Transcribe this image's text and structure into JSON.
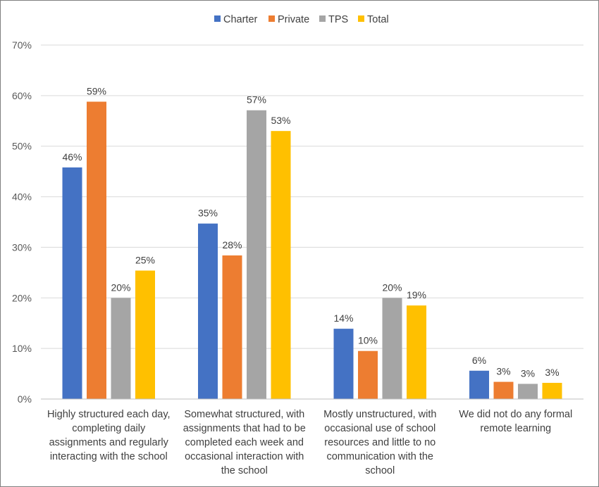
{
  "chart_data": {
    "type": "bar",
    "title": "",
    "xlabel": "",
    "ylabel": "",
    "ylim": [
      0,
      70
    ],
    "yticks": [
      0,
      10,
      20,
      30,
      40,
      50,
      60,
      70
    ],
    "ytick_labels": [
      "0%",
      "10%",
      "20%",
      "30%",
      "40%",
      "50%",
      "60%",
      "70%"
    ],
    "grid": true,
    "legend_position": "top-center",
    "categories": [
      [
        "Highly structured each day,",
        "completing daily",
        "assignments and regularly",
        "interacting with the school"
      ],
      [
        "Somewhat structured, with",
        "assignments that had to be",
        "completed each week and",
        "occasional interaction with",
        "the school"
      ],
      [
        "Mostly unstructured, with",
        "occasional use of school",
        "resources and little to no",
        "communication with the",
        "school"
      ],
      [
        "We did not do any formal",
        "remote learning"
      ]
    ],
    "series": [
      {
        "name": "Charter",
        "color": "#4472c4",
        "values": [
          46,
          35,
          14,
          6
        ],
        "labels": [
          "46%",
          "35%",
          "14%",
          "6%"
        ]
      },
      {
        "name": "Private",
        "color": "#ed7d31",
        "values": [
          59,
          28,
          10,
          3
        ],
        "labels": [
          "59%",
          "28%",
          "10%",
          "3%"
        ]
      },
      {
        "name": "TPS",
        "color": "#a5a5a5",
        "values": [
          20,
          57,
          20,
          3
        ],
        "labels": [
          "20%",
          "57%",
          "20%",
          "3%"
        ]
      },
      {
        "name": "Total",
        "color": "#ffc000",
        "values": [
          25,
          53,
          19,
          3
        ],
        "labels": [
          "25%",
          "53%",
          "19%",
          "3%"
        ]
      }
    ],
    "bar_heights": [
      [
        45.8,
        34.7,
        13.9,
        5.6
      ],
      [
        58.8,
        28.4,
        9.5,
        3.4
      ],
      [
        20.0,
        57.1,
        20.0,
        3.0
      ],
      [
        25.4,
        53.0,
        18.5,
        3.2
      ]
    ]
  }
}
